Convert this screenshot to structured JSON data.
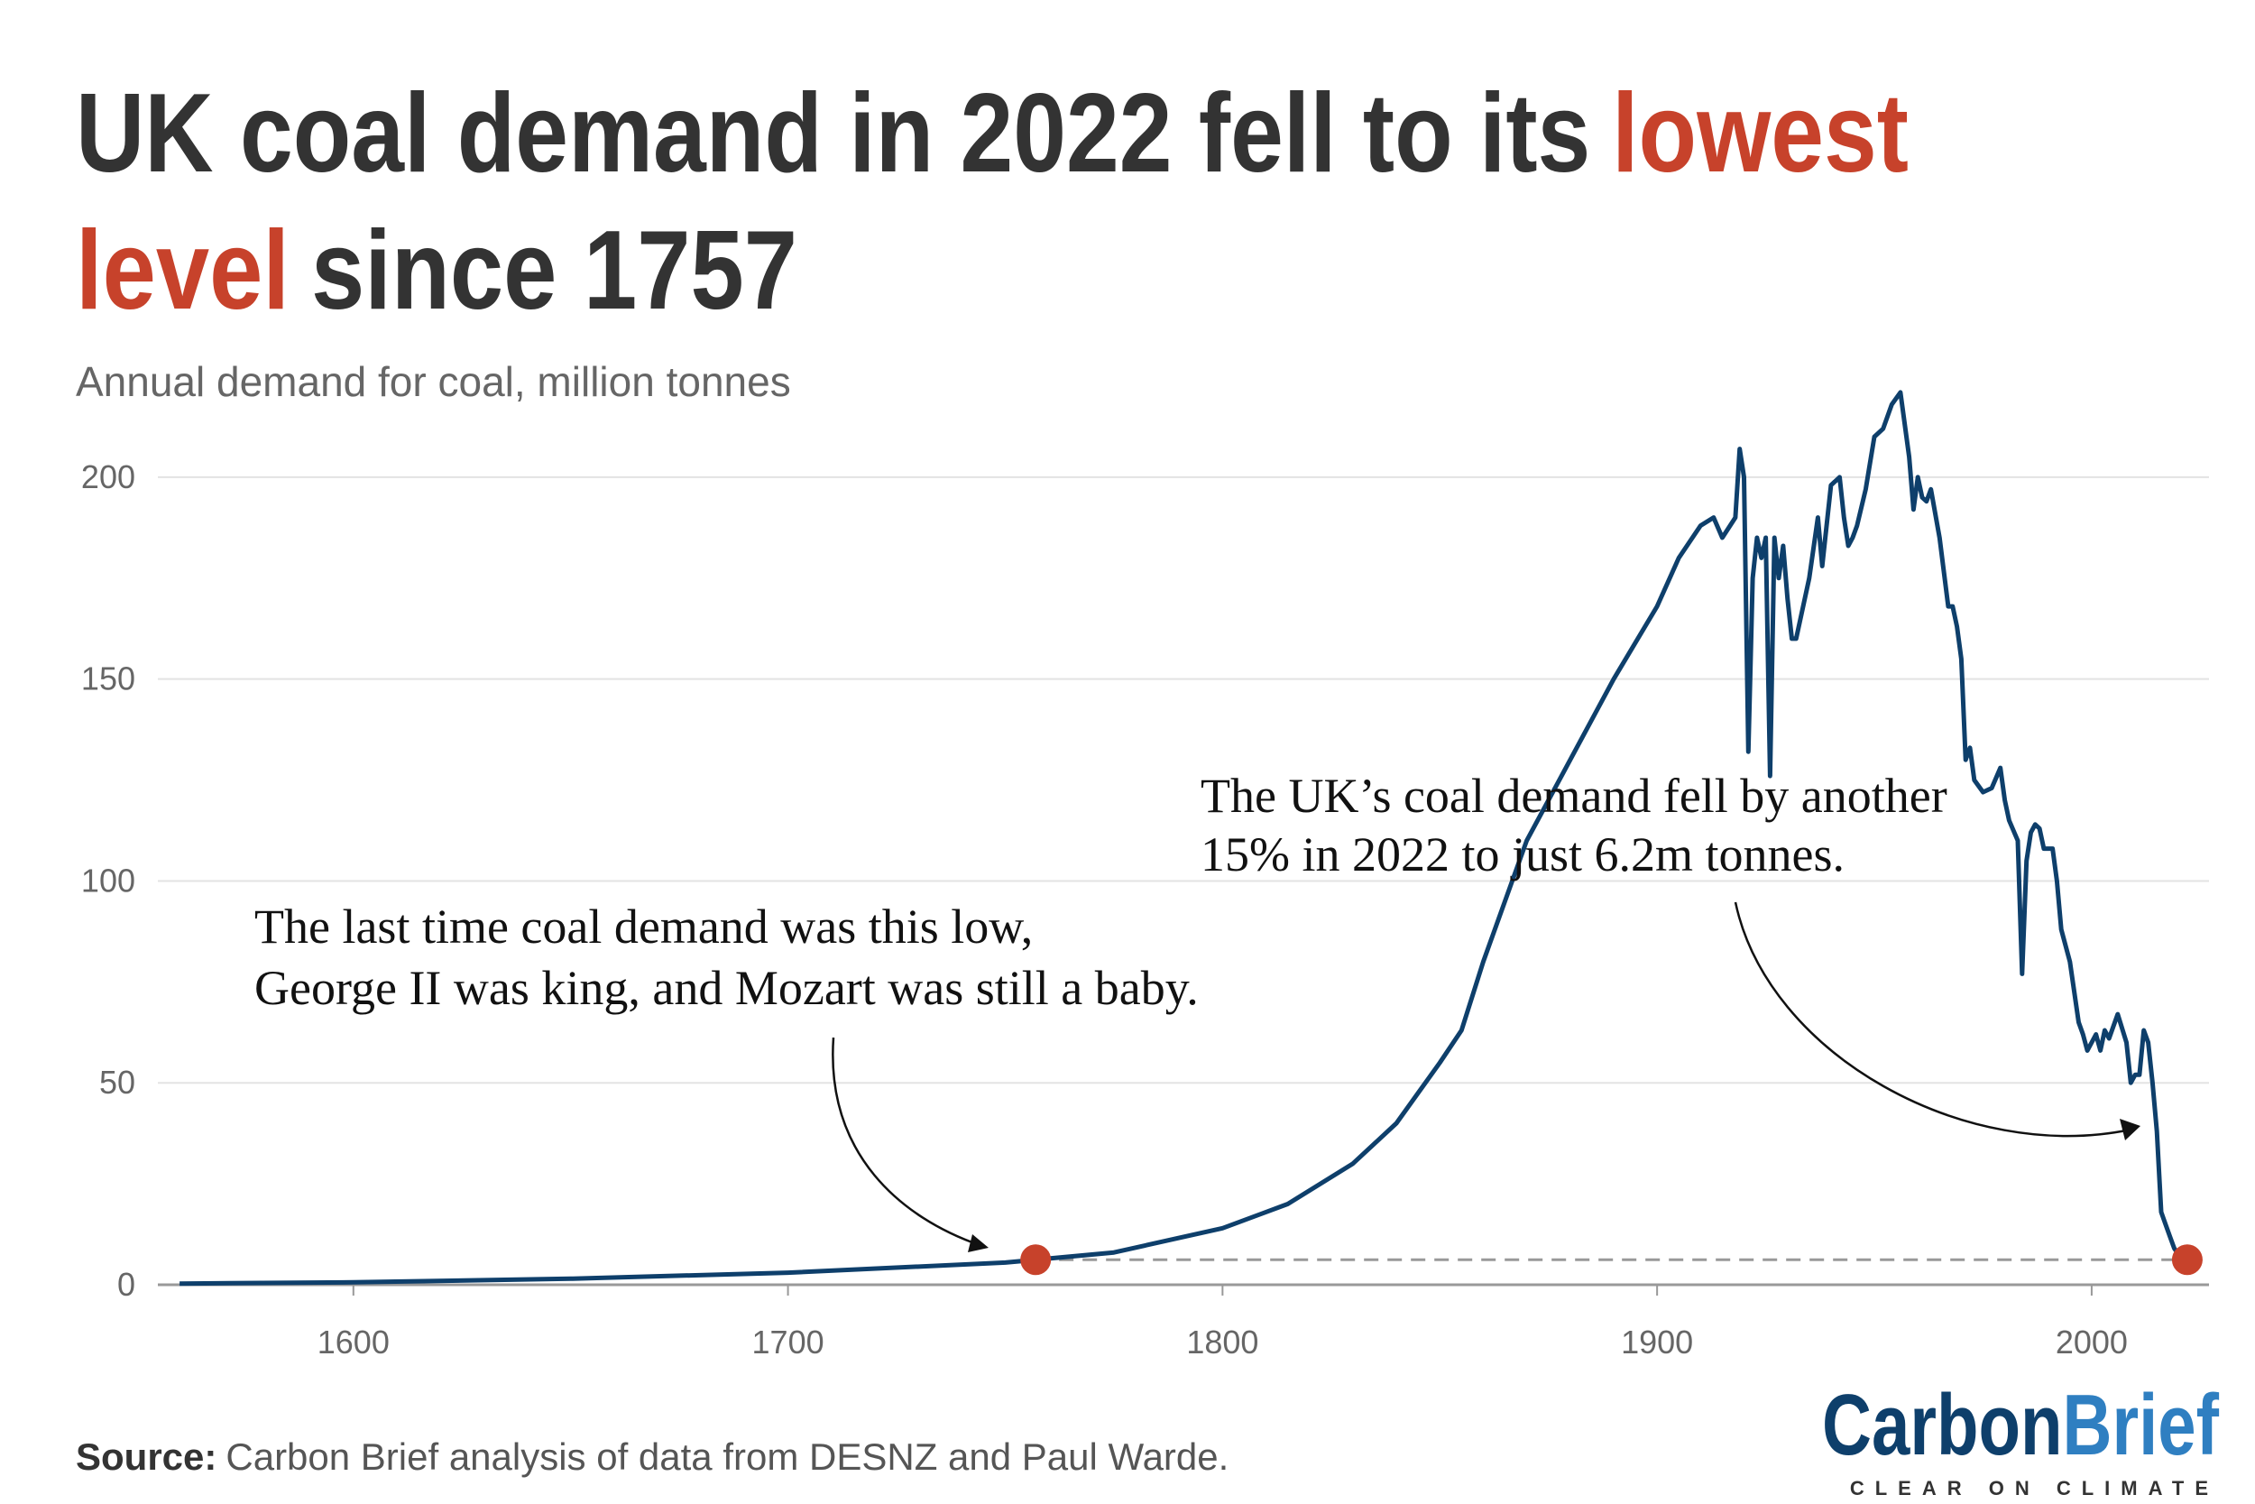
{
  "chart_data": {
    "type": "line",
    "title": [
      "UK coal demand in 2022 fell to its",
      "lowest",
      "level",
      "since 1757"
    ],
    "subtitle": "Annual demand for coal, million tonnes",
    "annotations": [
      {
        "lines": [
          "The last time coal demand was this low,",
          "George II was king, and Mozart was still a baby."
        ]
      },
      {
        "lines": [
          "The UK’s coal demand fell by another",
          "15% in 2022 to just 6.2m tonnes."
        ]
      }
    ],
    "source": {
      "label": "Source:",
      "text": "Carbon Brief analysis of data from DESNZ and Paul Warde."
    },
    "logo": {
      "name1": "Carbon",
      "name2": "Brief",
      "tagline": "CLEAR ON CLIMATE"
    },
    "color": "#0e3f6b",
    "highlight_color": "#c7422b",
    "xlim": [
      1555,
      2027
    ],
    "xticks": [
      1600,
      1700,
      1800,
      1900,
      2000
    ],
    "ylim": [
      0,
      225
    ],
    "yticks": [
      0,
      50,
      100,
      150,
      200
    ],
    "grid": true,
    "x": [
      1560,
      1600,
      1650,
      1700,
      1750,
      1757,
      1775,
      1800,
      1815,
      1830,
      1840,
      1850,
      1855,
      1860,
      1865,
      1870,
      1880,
      1890,
      1900,
      1905,
      1910,
      1913,
      1915,
      1918,
      1919,
      1920,
      1921,
      1922,
      1923,
      1924,
      1925,
      1926,
      1927,
      1928,
      1929,
      1930,
      1931,
      1932,
      1935,
      1937,
      1938,
      1940,
      1942,
      1943,
      1944,
      1945,
      1946,
      1948,
      1950,
      1952,
      1954,
      1956,
      1958,
      1959,
      1960,
      1961,
      1962,
      1963,
      1965,
      1967,
      1968,
      1969,
      1970,
      1971,
      1972,
      1973,
      1975,
      1977,
      1979,
      1980,
      1981,
      1983,
      1984,
      1985,
      1986,
      1987,
      1988,
      1989,
      1990,
      1991,
      1992,
      1993,
      1995,
      1997,
      1998,
      1999,
      2000,
      2001,
      2002,
      2003,
      2004,
      2006,
      2008,
      2009,
      2010,
      2011,
      2012,
      2013,
      2014,
      2015,
      2016,
      2017,
      2018,
      2019,
      2020,
      2021,
      2022
    ],
    "values": [
      0.3,
      0.6,
      1.5,
      3,
      5.5,
      6.2,
      8,
      14,
      20,
      30,
      40,
      55,
      63,
      80,
      95,
      110,
      130,
      150,
      168,
      180,
      188,
      190,
      185,
      190,
      207,
      200,
      132,
      175,
      185,
      180,
      185,
      126,
      185,
      175,
      183,
      170,
      160,
      160,
      175,
      190,
      178,
      198,
      200,
      190,
      183,
      185,
      188,
      197,
      210,
      212,
      218,
      221,
      205,
      192,
      200,
      195,
      194,
      197,
      185,
      168,
      168,
      163,
      155,
      130,
      133,
      125,
      122,
      123,
      128,
      120,
      115,
      110,
      77,
      105,
      112,
      114,
      113,
      108,
      108,
      108,
      100,
      88,
      80,
      65,
      62,
      58,
      60,
      62,
      58,
      63,
      61,
      67,
      60,
      50,
      52,
      52,
      63,
      60,
      50,
      38,
      18,
      15,
      12,
      9,
      7.5,
      7.3,
      6.2
    ]
  }
}
